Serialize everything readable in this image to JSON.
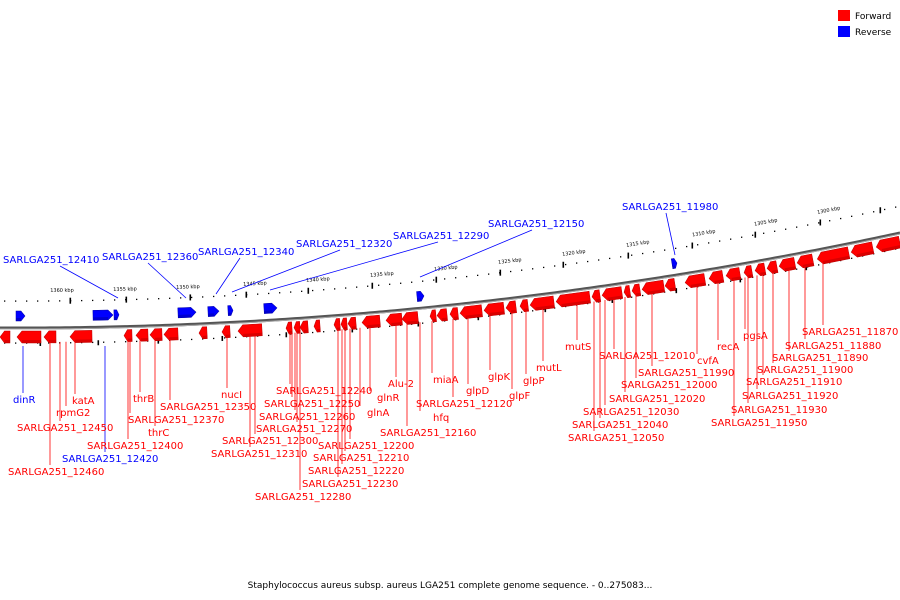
{
  "legend": {
    "forward_label": "Forward",
    "reverse_label": "Reverse",
    "forward_color": "#ff0000",
    "reverse_color": "#0000ff"
  },
  "caption": "Staphylococcus aureus subsp. aureus LGA251 complete genome sequence. - 0..275083...",
  "scale_ticks": [
    "1360 kbp",
    "1355 kbp",
    "1350 kbp",
    "1345 kbp",
    "1340 kbp",
    "1335 kbp",
    "1330 kbp",
    "1325 kbp",
    "1320 kbp",
    "1315 kbp",
    "1310 kbp",
    "1305 kbp",
    "1300 kbp"
  ],
  "reverse_genes": [
    "SARLGA251_12410",
    "SARLGA251_12360",
    "SARLGA251_12340",
    "SARLGA251_12320",
    "SARLGA251_12290",
    "SARLGA251_12150",
    "SARLGA251_11980",
    "dinR",
    "SARLGA251_12420"
  ],
  "forward_genes": [
    "katA",
    "rpmG2",
    "SARLGA251_12450",
    "SARLGA251_12460",
    "thrB",
    "thrC",
    "SARLGA251_12370",
    "SARLGA251_12400",
    "nucI",
    "SARLGA251_12350",
    "SARLGA251_12240",
    "SARLGA251_12250",
    "SARLGA251_12260",
    "SARLGA251_12270",
    "SARLGA251_12300",
    "SARLGA251_12310",
    "SARLGA251_12280",
    "glnR",
    "glnA",
    "SARLGA251_12200",
    "SARLGA251_12210",
    "SARLGA251_12220",
    "SARLGA251_12230",
    "Alu-2",
    "miaA",
    "hfq",
    "SARLGA251_12160",
    "SARLGA251_12120",
    "glpD",
    "glpK",
    "glpF",
    "glpP",
    "mutL",
    "mutS",
    "SARLGA251_12010",
    "SARLGA251_11990",
    "SARLGA251_12000",
    "SARLGA251_12020",
    "SARLGA251_12030",
    "SARLGA251_12040",
    "SARLGA251_12050",
    "cvfA",
    "recA",
    "pgsA",
    "SARLGA251_11870",
    "SARLGA251_11880",
    "SARLGA251_11890",
    "SARLGA251_11900",
    "SARLGA251_11910",
    "SARLGA251_11920",
    "SARLGA251_11930",
    "SARLGA251_11950"
  ]
}
